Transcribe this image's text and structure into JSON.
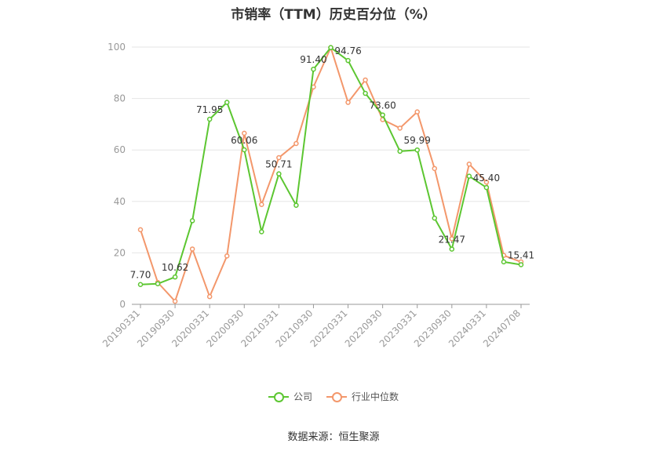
{
  "chart_data": {
    "type": "line",
    "title": "市销率（TTM）历史百分位（%）",
    "source": "数据来源：恒生聚源",
    "ylim": [
      0,
      100
    ],
    "yticks": [
      0,
      20,
      40,
      60,
      80,
      100
    ],
    "x_tick_labels": [
      "20190331",
      "20190930",
      "20200331",
      "20200930",
      "20210331",
      "20210930",
      "20220331",
      "20220930",
      "20230331",
      "20230930",
      "20240331",
      "20240708"
    ],
    "x": [
      "20190331",
      "20190630",
      "20190930",
      "20191231",
      "20200331",
      "20200630",
      "20200930",
      "20201231",
      "20210331",
      "20210630",
      "20210930",
      "20211231",
      "20220331",
      "20220630",
      "20220930",
      "20221231",
      "20230331",
      "20230630",
      "20230930",
      "20231231",
      "20240331",
      "20240630",
      "20240708"
    ],
    "series": [
      {
        "name": "公司",
        "color": "#5cc631",
        "values": [
          7.7,
          8.0,
          10.62,
          32.5,
          71.95,
          78.5,
          60.06,
          28.2,
          50.71,
          38.5,
          91.4,
          99.8,
          94.76,
          82.0,
          73.6,
          59.5,
          59.99,
          33.5,
          21.47,
          49.8,
          45.4,
          16.5,
          15.41
        ],
        "labels": [
          "7.70",
          "",
          "10.62",
          "",
          "71.95",
          "",
          "60.06",
          "",
          "50.71",
          "",
          "91.40",
          "",
          "94.76",
          "",
          "73.60",
          "",
          "59.99",
          "",
          "21.47",
          "",
          "45.40",
          "",
          "15.41"
        ]
      },
      {
        "name": "行业中位数",
        "color": "#f3976b",
        "values": [
          29.0,
          8.5,
          1.2,
          21.5,
          3.0,
          18.8,
          66.5,
          38.8,
          57.0,
          62.5,
          84.5,
          99.8,
          78.5,
          87.2,
          71.8,
          68.5,
          74.8,
          52.8,
          25.5,
          54.5,
          47.5,
          19.0,
          16.5
        ]
      }
    ],
    "grid": true,
    "legend_position": "bottom-center"
  }
}
